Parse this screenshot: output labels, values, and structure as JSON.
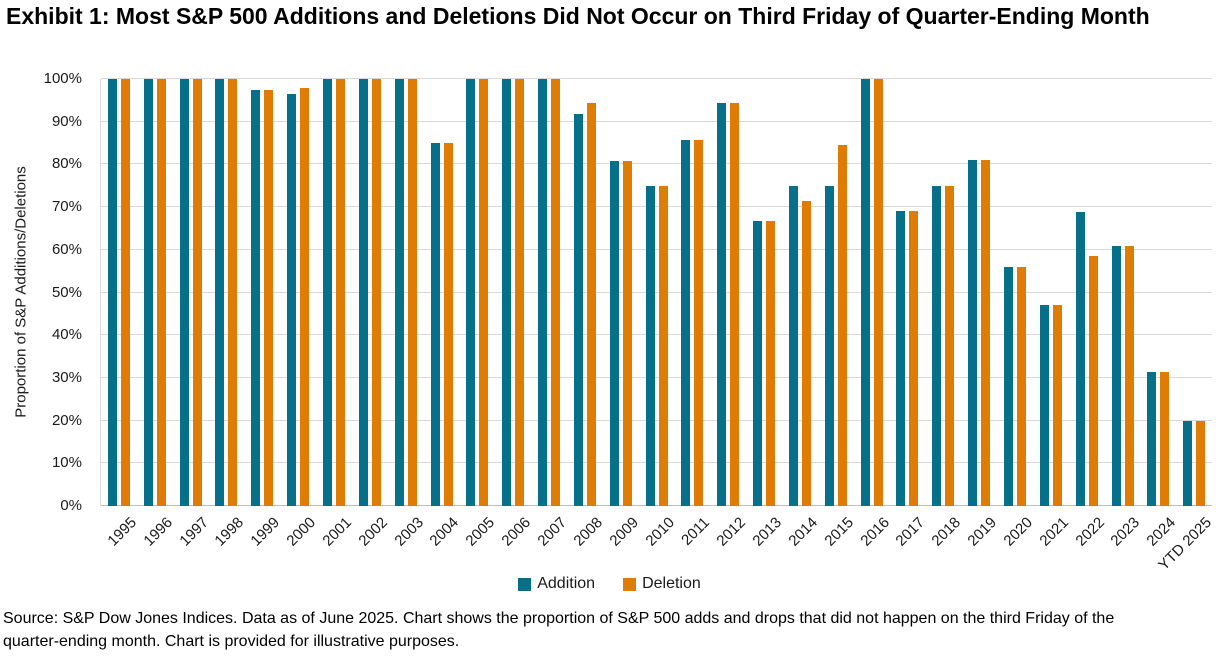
{
  "title": "Exhibit 1: Most S&P 500 Additions and Deletions Did Not Occur on Third Friday of Quarter-Ending Month",
  "footnote": "Source: S&P Dow Jones Indices. Data as of June 2025. Chart shows the proportion of S&P 500 adds and drops that did not happen on the third Friday of the quarter-ending month. Chart is provided for illustrative purposes.",
  "legend": {
    "addition_label": "Addition",
    "deletion_label": "Deletion"
  },
  "colors": {
    "addition": "#06708A",
    "deletion": "#DE7C05",
    "gridline": "#D9D9D9",
    "axis_line": "#BFBFBF",
    "text": "#000000",
    "background": "#FFFFFF"
  },
  "chart_data": {
    "type": "bar",
    "title": "Exhibit 1: Most S&P 500 Additions and Deletions Did Not Occur on Third Friday of Quarter-Ending Month",
    "xlabel": "",
    "ylabel": "Proportion of S&P Additions/Deletions",
    "ylim": [
      0,
      100
    ],
    "ytick_step": 10,
    "ytick_suffix": "%",
    "grid": true,
    "legend_position": "bottom",
    "categories": [
      "1995",
      "1996",
      "1997",
      "1998",
      "1999",
      "2000",
      "2001",
      "2002",
      "2003",
      "2004",
      "2005",
      "2006",
      "2007",
      "2008",
      "2009",
      "2010",
      "2011",
      "2012",
      "2013",
      "2014",
      "2015",
      "2016",
      "2017",
      "2018",
      "2019",
      "2020",
      "2021",
      "2022",
      "2023",
      "2024",
      "YTD 2025"
    ],
    "series": [
      {
        "name": "Addition",
        "color": "#06708A",
        "values": [
          100,
          100,
          100,
          100,
          97.5,
          96.4,
          100,
          100,
          100,
          85,
          100,
          100,
          100,
          91.8,
          80.8,
          75,
          85.7,
          94.3,
          66.7,
          75,
          75,
          100,
          69.2,
          75,
          81,
          56,
          47,
          68.8,
          61,
          31.3,
          20
        ]
      },
      {
        "name": "Deletion",
        "color": "#DE7C05",
        "values": [
          100,
          100,
          100,
          100,
          97.5,
          98,
          100,
          100,
          100,
          85,
          100,
          100,
          100,
          94.5,
          80.8,
          75,
          85.7,
          94.3,
          66.7,
          71.4,
          84.5,
          100,
          69.2,
          75,
          81,
          56,
          47,
          58.6,
          61,
          31.3,
          20
        ]
      }
    ]
  }
}
